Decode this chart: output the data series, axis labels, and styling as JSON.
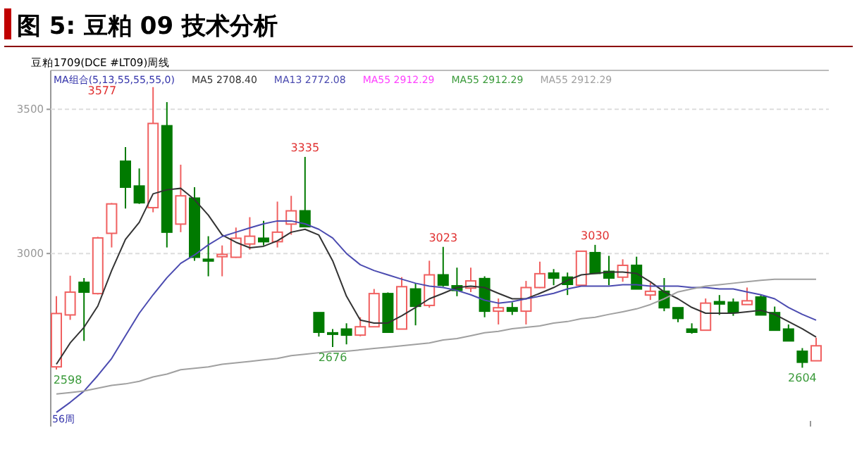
{
  "chart_data": {
    "type": "candlestick",
    "title": "图 5: 豆粕 09 技术分析",
    "subtitle": "豆粕1709(DCE #LT09)周线",
    "categories": [
      null,
      null,
      null,
      null,
      null,
      null,
      null,
      null,
      null,
      null,
      null,
      null,
      null,
      null,
      null,
      null,
      null,
      null,
      null,
      null,
      null,
      null,
      null,
      null,
      null,
      null,
      null,
      null,
      null,
      null,
      null,
      null,
      null,
      null,
      null,
      null,
      null,
      null,
      null,
      null,
      null,
      null,
      null,
      null,
      null,
      null,
      null,
      null,
      null,
      null,
      null,
      null,
      null,
      null,
      null,
      null
    ],
    "ohlc": [
      [
        2607,
        2852,
        2598,
        2792
      ],
      [
        2787,
        2923,
        2770,
        2866
      ],
      [
        2900,
        2915,
        2697,
        2866
      ],
      [
        2861,
        3058,
        2858,
        3054
      ],
      [
        3070,
        3175,
        3021,
        3172
      ],
      [
        3320,
        3369,
        3156,
        3230
      ],
      [
        3234,
        3295,
        3172,
        3176
      ],
      [
        3159,
        3577,
        3143,
        3451
      ],
      [
        3443,
        3525,
        3021,
        3074
      ],
      [
        3102,
        3308,
        3074,
        3200
      ],
      [
        3192,
        3230,
        2975,
        2987
      ],
      [
        2980,
        3060,
        2921,
        2974
      ],
      [
        2989,
        3028,
        2921,
        2997
      ],
      [
        2987,
        3090,
        2985,
        3053
      ],
      [
        3033,
        3126,
        3013,
        3060
      ],
      [
        3053,
        3113,
        3028,
        3041
      ],
      [
        3041,
        3180,
        3021,
        3074
      ],
      [
        3102,
        3200,
        3065,
        3148
      ],
      [
        3148,
        3335,
        3093,
        3093
      ],
      [
        2795,
        2795,
        2712,
        2727
      ],
      [
        2725,
        2738,
        2676,
        2720
      ],
      [
        2738,
        2758,
        2685,
        2717
      ],
      [
        2717,
        2779,
        2713,
        2746
      ],
      [
        2746,
        2877,
        2746,
        2861
      ],
      [
        2861,
        2865,
        2727,
        2727
      ],
      [
        2738,
        2918,
        2738,
        2885
      ],
      [
        2877,
        2898,
        2751,
        2817
      ],
      [
        2820,
        2975,
        2812,
        2926
      ],
      [
        2926,
        3023,
        2885,
        2890
      ],
      [
        2888,
        2951,
        2852,
        2872
      ],
      [
        2880,
        2951,
        2866,
        2905
      ],
      [
        2913,
        2921,
        2779,
        2800
      ],
      [
        2800,
        2844,
        2754,
        2812
      ],
      [
        2812,
        2831,
        2787,
        2800
      ],
      [
        2800,
        2905,
        2754,
        2882
      ],
      [
        2882,
        2972,
        2880,
        2930
      ],
      [
        2932,
        2946,
        2890,
        2915
      ],
      [
        2918,
        2934,
        2856,
        2893
      ],
      [
        2890,
        3010,
        2890,
        3008
      ],
      [
        3003,
        3030,
        2931,
        2931
      ],
      [
        2938,
        2992,
        2890,
        2915
      ],
      [
        2918,
        2980,
        2902,
        2959
      ],
      [
        2959,
        2989,
        2877,
        2877
      ],
      [
        2856,
        2898,
        2839,
        2869
      ],
      [
        2869,
        2915,
        2800,
        2812
      ],
      [
        2812,
        2812,
        2762,
        2775
      ],
      [
        2738,
        2758,
        2722,
        2727
      ],
      [
        2734,
        2844,
        2734,
        2828
      ],
      [
        2833,
        2856,
        2787,
        2825
      ],
      [
        2831,
        2844,
        2784,
        2795
      ],
      [
        2823,
        2882,
        2823,
        2836
      ],
      [
        2849,
        2856,
        2787,
        2787
      ],
      [
        2795,
        2816,
        2734,
        2734
      ],
      [
        2738,
        2754,
        2697,
        2697
      ],
      [
        2661,
        2672,
        2604,
        2623
      ],
      [
        2628,
        2708,
        2628,
        2680
      ]
    ],
    "colors": [
      "#f06060",
      "#f06060",
      "#007a00",
      "#f06060",
      "#f06060",
      "#007a00",
      "#007a00",
      "#f06060",
      "#007a00",
      "#f06060",
      "#007a00",
      "#007a00",
      "#f06060",
      "#f06060",
      "#f06060",
      "#007a00",
      "#f06060",
      "#f06060",
      "#007a00",
      "#007a00",
      "#007a00",
      "#007a00",
      "#f06060",
      "#f06060",
      "#007a00",
      "#f06060",
      "#007a00",
      "#f06060",
      "#007a00",
      "#007a00",
      "#f06060",
      "#007a00",
      "#f06060",
      "#007a00",
      "#f06060",
      "#f06060",
      "#007a00",
      "#007a00",
      "#f06060",
      "#007a00",
      "#007a00",
      "#f06060",
      "#007a00",
      "#f06060",
      "#007a00",
      "#007a00",
      "#007a00",
      "#f06060",
      "#007a00",
      "#007a00",
      "#f06060",
      "#007a00",
      "#007a00",
      "#007a00",
      "#007a00",
      "#f06060"
    ],
    "series": [
      {
        "name": "MA5 2708.40",
        "type": "line",
        "color": "#333333",
        "values": [
          2616,
          2690,
          2744,
          2818,
          2941,
          3049,
          3108,
          3207,
          3221,
          3226,
          3187,
          3133,
          3064,
          3039,
          3020,
          3025,
          3044,
          3074,
          3084,
          3064,
          2975,
          2852,
          2769,
          2759,
          2759,
          2784,
          2813,
          2843,
          2862,
          2882,
          2887,
          2882,
          2862,
          2843,
          2843,
          2862,
          2882,
          2907,
          2926,
          2931,
          2936,
          2936,
          2931,
          2902,
          2867,
          2843,
          2813,
          2793,
          2793,
          2793,
          2798,
          2803,
          2789,
          2764,
          2739,
          2710
        ]
      },
      {
        "name": "MA13 2772.08",
        "type": "line",
        "color": "#4b4bb0",
        "values": [
          2449,
          2484,
          2523,
          2577,
          2636,
          2715,
          2793,
          2857,
          2916,
          2966,
          2995,
          3030,
          3059,
          3074,
          3089,
          3103,
          3113,
          3113,
          3103,
          3084,
          3054,
          3000,
          2961,
          2941,
          2926,
          2911,
          2897,
          2887,
          2882,
          2872,
          2857,
          2838,
          2828,
          2833,
          2843,
          2852,
          2862,
          2877,
          2887,
          2887,
          2887,
          2892,
          2892,
          2887,
          2887,
          2887,
          2882,
          2882,
          2877,
          2877,
          2867,
          2857,
          2843,
          2813,
          2789,
          2769
        ]
      },
      {
        "name": "MA55 2912.29",
        "type": "line",
        "color": "#a0a0a0",
        "values": [
          2513,
          2518,
          2523,
          2533,
          2543,
          2548,
          2557,
          2572,
          2582,
          2597,
          2602,
          2607,
          2616,
          2621,
          2626,
          2631,
          2636,
          2646,
          2651,
          2656,
          2661,
          2661,
          2666,
          2671,
          2675,
          2680,
          2685,
          2690,
          2700,
          2705,
          2715,
          2725,
          2730,
          2739,
          2744,
          2749,
          2759,
          2764,
          2774,
          2779,
          2789,
          2798,
          2808,
          2823,
          2843,
          2867,
          2877,
          2887,
          2892,
          2897,
          2902,
          2907,
          2911,
          2911,
          2911,
          2911
        ]
      }
    ],
    "annotations": [
      "MA组合(5,13,55,55,55,0)",
      "MA55 2912.29",
      "MA55 2912.29",
      "56周",
      "3577",
      {
        "text": "3335",
        "y": 3335
      },
      {
        "text": "3023",
        "y": 3023
      },
      {
        "text": "3030",
        "y": 3030
      },
      {
        "text": "2598",
        "y": 2598
      },
      {
        "text": "2676",
        "y": 2676
      },
      {
        "text": "2604",
        "y": 2604
      }
    ],
    "ylim": [
      2400,
      3635
    ],
    "yticks": [
      3000,
      3500
    ],
    "grid": "y",
    "legend": "top left"
  }
}
